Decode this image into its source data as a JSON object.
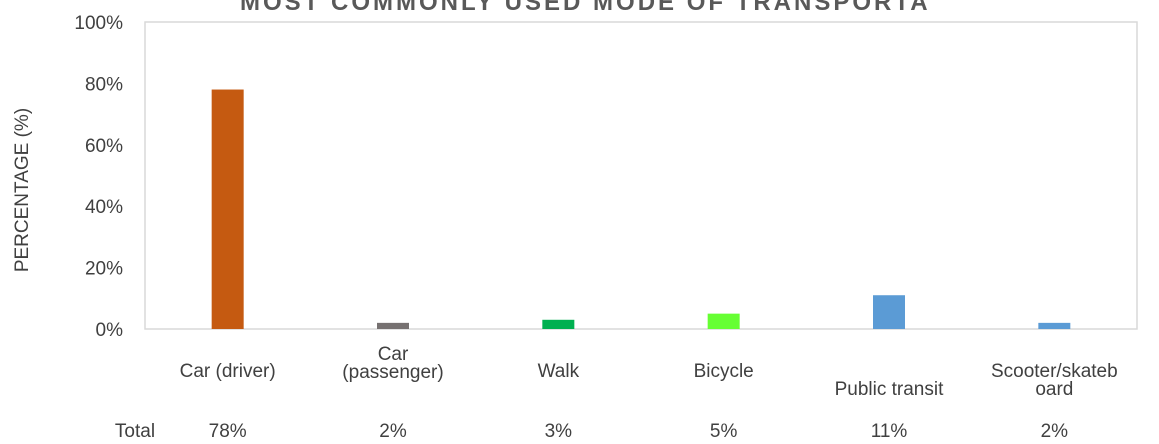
{
  "chart_data": {
    "type": "bar",
    "title": "MOST COMMONLY USED MODE OF TRANSPORTA",
    "y_label": "PERCENTAGE (%)",
    "categories": [
      "Car (driver)",
      "Car (passenger)",
      "Walk",
      "Bicycle",
      "Public transit",
      "Scooter/skateboard"
    ],
    "series": [
      {
        "name": "Total",
        "values": [
          78,
          2,
          3,
          5,
          11,
          2
        ],
        "value_labels": [
          "78%",
          "2%",
          "3%",
          "5%",
          "11%",
          "2%"
        ],
        "colors": [
          "#c55a11",
          "#767171",
          "#00b050",
          "#66ff33",
          "#5b9bd5",
          "#5b9bd5"
        ]
      }
    ],
    "ylim": [
      0,
      100
    ],
    "yticks": [
      {
        "value": 0,
        "label": "0%"
      },
      {
        "value": 20,
        "label": "20%"
      },
      {
        "value": 40,
        "label": "40%"
      },
      {
        "value": 60,
        "label": "60%"
      },
      {
        "value": 80,
        "label": "80%"
      },
      {
        "value": 100,
        "label": "100%"
      }
    ],
    "grid": false
  }
}
